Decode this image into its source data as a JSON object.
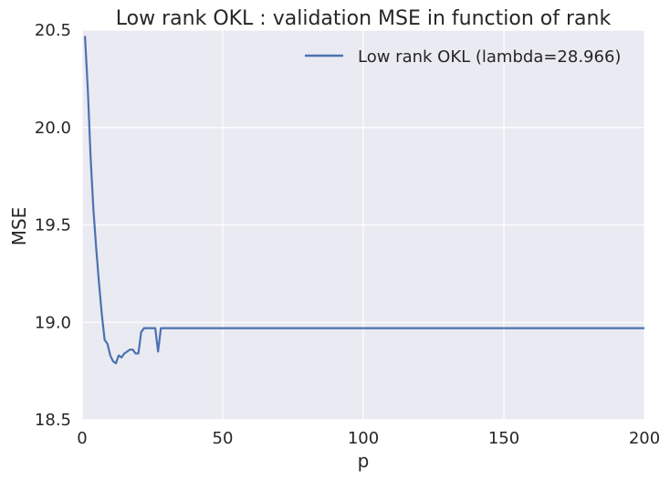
{
  "chart_data": {
    "type": "line",
    "title": "Low rank OKL : validation MSE in function of rank",
    "xlabel": "p",
    "ylabel": "MSE",
    "xlim": [
      0,
      200
    ],
    "ylim": [
      18.5,
      20.5
    ],
    "xticks": [
      "0",
      "50",
      "100",
      "150",
      "200"
    ],
    "yticks": [
      "18.5",
      "19.0",
      "19.5",
      "20.0",
      "20.5"
    ],
    "grid": true,
    "legend_position": "top-right",
    "background": "#EAEAF2",
    "series": [
      {
        "name": "Low rank OKL (lambda=28.966)",
        "color": "#4C72B0",
        "x": [
          1,
          2,
          3,
          4,
          5,
          6,
          7,
          8,
          9,
          10,
          11,
          12,
          13,
          14,
          15,
          16,
          17,
          18,
          19,
          20,
          21,
          22,
          23,
          24,
          25,
          26,
          27,
          28,
          30,
          40,
          50,
          60,
          70,
          80,
          90,
          100,
          110,
          120,
          130,
          140,
          150,
          160,
          170,
          180,
          190,
          200
        ],
        "values": [
          20.47,
          20.2,
          19.85,
          19.58,
          19.38,
          19.2,
          19.04,
          18.91,
          18.89,
          18.83,
          18.8,
          18.79,
          18.83,
          18.82,
          18.84,
          18.85,
          18.86,
          18.86,
          18.84,
          18.84,
          18.95,
          18.97,
          18.97,
          18.97,
          18.97,
          18.97,
          18.85,
          18.97,
          18.97,
          18.97,
          18.97,
          18.97,
          18.97,
          18.97,
          18.97,
          18.97,
          18.97,
          18.97,
          18.97,
          18.97,
          18.97,
          18.97,
          18.97,
          18.97,
          18.97,
          18.97
        ]
      }
    ]
  }
}
